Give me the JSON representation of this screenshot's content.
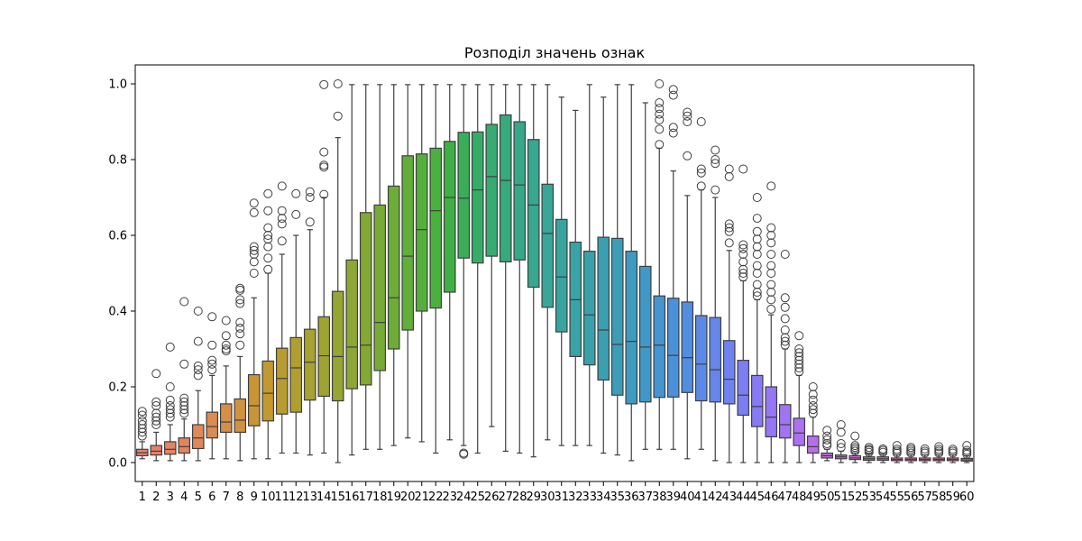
{
  "chart_data": {
    "type": "box",
    "title": "Розподіл значень ознак",
    "xlabel": "",
    "ylabel": "",
    "ylim": [
      -0.05,
      1.05
    ],
    "yticks": [
      0.0,
      0.2,
      0.4,
      0.6,
      0.8,
      1.0
    ],
    "ytick_labels": [
      "0.0",
      "0.2",
      "0.4",
      "0.6",
      "0.8",
      "1.0"
    ],
    "grid": false,
    "legend": "none",
    "categories": [
      "1",
      "2",
      "3",
      "4",
      "5",
      "6",
      "7",
      "8",
      "9",
      "10",
      "11",
      "12",
      "13",
      "14",
      "15",
      "16",
      "17",
      "18",
      "19",
      "20",
      "21",
      "22",
      "23",
      "24",
      "25",
      "26",
      "27",
      "28",
      "29",
      "30",
      "31",
      "32",
      "33",
      "34",
      "35",
      "36",
      "37",
      "38",
      "39",
      "40",
      "41",
      "42",
      "43",
      "44",
      "45",
      "46",
      "47",
      "48",
      "49",
      "50",
      "51",
      "52",
      "53",
      "54",
      "55",
      "56",
      "57",
      "58",
      "59",
      "60"
    ],
    "colors": [
      "#e8816f",
      "#e6816a",
      "#e58365",
      "#e38460",
      "#df885a",
      "#dc8b52",
      "#d58f48",
      "#cf9240",
      "#c89636",
      "#c1992f",
      "#b99c2f",
      "#b09f30",
      "#a7a231",
      "#9fa332",
      "#97a533",
      "#8da734",
      "#83a935",
      "#78ab36",
      "#6cad38",
      "#61ae39",
      "#55b03b",
      "#4ab13e",
      "#3fb046",
      "#38ae58",
      "#36ad66",
      "#36ab72",
      "#36aa7d",
      "#36a886",
      "#37a78f",
      "#38a698",
      "#38a49f",
      "#39a3a6",
      "#3aa1ab",
      "#3b9fb2",
      "#3c9db9",
      "#3e9bc0",
      "#4098c8",
      "#4595d2",
      "#4b91d9",
      "#528ee0",
      "#5b8ae6",
      "#6586eb",
      "#7082ef",
      "#7b7ef2",
      "#877af4",
      "#9577f4",
      "#a174f3",
      "#ad71f0",
      "#b86eec",
      "#c36be7",
      "#cd68e0",
      "#d666d8",
      "#dd66cf",
      "#e267c5",
      "#e669bb",
      "#e96bb0",
      "#eb6ea7",
      "#ec709e",
      "#ed7396",
      "#ed768e"
    ],
    "series": [
      {
        "min": 0.01,
        "q1": 0.018,
        "median": 0.026,
        "q3": 0.035,
        "max": 0.055,
        "outliers": [
          0.07,
          0.08,
          0.09,
          0.1,
          0.11,
          0.125,
          0.135
        ]
      },
      {
        "min": 0.005,
        "q1": 0.02,
        "median": 0.03,
        "q3": 0.045,
        "max": 0.08,
        "outliers": [
          0.1,
          0.11,
          0.12,
          0.13,
          0.15,
          0.16,
          0.235
        ]
      },
      {
        "min": 0.005,
        "q1": 0.022,
        "median": 0.035,
        "q3": 0.055,
        "max": 0.1,
        "outliers": [
          0.12,
          0.13,
          0.14,
          0.15,
          0.165,
          0.2,
          0.305
        ]
      },
      {
        "min": 0.005,
        "q1": 0.025,
        "median": 0.042,
        "q3": 0.065,
        "max": 0.115,
        "outliers": [
          0.13,
          0.14,
          0.15,
          0.16,
          0.17,
          0.26,
          0.425
        ]
      },
      {
        "min": 0.005,
        "q1": 0.037,
        "median": 0.065,
        "q3": 0.1,
        "max": 0.19,
        "outliers": [
          0.23,
          0.245,
          0.255,
          0.32,
          0.4
        ]
      },
      {
        "min": 0.01,
        "q1": 0.065,
        "median": 0.095,
        "q3": 0.133,
        "max": 0.23,
        "outliers": [
          0.245,
          0.26,
          0.27,
          0.31,
          0.385
        ]
      },
      {
        "min": 0.01,
        "q1": 0.08,
        "median": 0.107,
        "q3": 0.155,
        "max": 0.255,
        "outliers": [
          0.295,
          0.3,
          0.31,
          0.335,
          0.375
        ]
      },
      {
        "min": 0.005,
        "q1": 0.08,
        "median": 0.112,
        "q3": 0.168,
        "max": 0.28,
        "outliers": [
          0.31,
          0.34,
          0.355,
          0.37,
          0.42,
          0.43,
          0.455,
          0.46
        ]
      },
      {
        "min": 0.01,
        "q1": 0.097,
        "median": 0.15,
        "q3": 0.232,
        "max": 0.435,
        "outliers": [
          0.5,
          0.53,
          0.55,
          0.56,
          0.57,
          0.66,
          0.685
        ]
      },
      {
        "min": 0.01,
        "q1": 0.11,
        "median": 0.183,
        "q3": 0.268,
        "max": 0.5,
        "outliers": [
          0.51,
          0.54,
          0.57,
          0.59,
          0.6,
          0.62,
          0.665,
          0.71
        ]
      },
      {
        "min": 0.025,
        "q1": 0.128,
        "median": 0.222,
        "q3": 0.302,
        "max": 0.55,
        "outliers": [
          0.585,
          0.63,
          0.645,
          0.665,
          0.73
        ]
      },
      {
        "min": 0.025,
        "q1": 0.133,
        "median": 0.25,
        "q3": 0.33,
        "max": 0.6,
        "outliers": [
          0.655,
          0.71
        ]
      },
      {
        "min": 0.02,
        "q1": 0.165,
        "median": 0.265,
        "q3": 0.352,
        "max": 0.615,
        "outliers": [
          0.635,
          0.7,
          0.715
        ]
      },
      {
        "min": 0.025,
        "q1": 0.175,
        "median": 0.282,
        "q3": 0.385,
        "max": 0.7,
        "outliers": [
          0.708,
          0.78,
          0.785,
          0.82,
          0.998
        ]
      },
      {
        "min": 0.0,
        "q1": 0.163,
        "median": 0.28,
        "q3": 0.452,
        "max": 0.858,
        "outliers": [
          0.915,
          1.0
        ]
      },
      {
        "min": 0.02,
        "q1": 0.195,
        "median": 0.305,
        "q3": 0.535,
        "max": 0.998,
        "outliers": []
      },
      {
        "min": 0.035,
        "q1": 0.205,
        "median": 0.31,
        "q3": 0.66,
        "max": 0.998,
        "outliers": []
      },
      {
        "min": 0.035,
        "q1": 0.243,
        "median": 0.37,
        "q3": 0.68,
        "max": 0.998,
        "outliers": []
      },
      {
        "min": 0.045,
        "q1": 0.3,
        "median": 0.435,
        "q3": 0.73,
        "max": 0.998,
        "outliers": []
      },
      {
        "min": 0.065,
        "q1": 0.35,
        "median": 0.545,
        "q3": 0.81,
        "max": 0.998,
        "outliers": []
      },
      {
        "min": 0.055,
        "q1": 0.4,
        "median": 0.615,
        "q3": 0.815,
        "max": 0.998,
        "outliers": []
      },
      {
        "min": 0.025,
        "q1": 0.408,
        "median": 0.665,
        "q3": 0.83,
        "max": 0.998,
        "outliers": []
      },
      {
        "min": 0.06,
        "q1": 0.45,
        "median": 0.7,
        "q3": 0.848,
        "max": 0.998,
        "outliers": []
      },
      {
        "min": 0.045,
        "q1": 0.54,
        "median": 0.698,
        "q3": 0.872,
        "max": 0.998,
        "outliers": [
          0.022,
          0.025
        ]
      },
      {
        "min": 0.025,
        "q1": 0.527,
        "median": 0.72,
        "q3": 0.873,
        "max": 0.998,
        "outliers": []
      },
      {
        "min": 0.095,
        "q1": 0.545,
        "median": 0.755,
        "q3": 0.893,
        "max": 0.998,
        "outliers": []
      },
      {
        "min": 0.03,
        "q1": 0.53,
        "median": 0.745,
        "q3": 0.918,
        "max": 0.998,
        "outliers": []
      },
      {
        "min": 0.025,
        "q1": 0.535,
        "median": 0.733,
        "q3": 0.9,
        "max": 0.998,
        "outliers": []
      },
      {
        "min": 0.015,
        "q1": 0.463,
        "median": 0.68,
        "q3": 0.853,
        "max": 0.998,
        "outliers": []
      },
      {
        "min": 0.06,
        "q1": 0.41,
        "median": 0.605,
        "q3": 0.735,
        "max": 0.998,
        "outliers": []
      },
      {
        "min": 0.045,
        "q1": 0.345,
        "median": 0.49,
        "q3": 0.642,
        "max": 0.965,
        "outliers": []
      },
      {
        "min": 0.045,
        "q1": 0.28,
        "median": 0.43,
        "q3": 0.582,
        "max": 0.93,
        "outliers": []
      },
      {
        "min": 0.045,
        "q1": 0.258,
        "median": 0.39,
        "q3": 0.558,
        "max": 0.998,
        "outliers": []
      },
      {
        "min": 0.025,
        "q1": 0.218,
        "median": 0.35,
        "q3": 0.595,
        "max": 0.965,
        "outliers": []
      },
      {
        "min": 0.02,
        "q1": 0.178,
        "median": 0.312,
        "q3": 0.592,
        "max": 0.998,
        "outliers": []
      },
      {
        "min": 0.005,
        "q1": 0.155,
        "median": 0.32,
        "q3": 0.558,
        "max": 0.998,
        "outliers": []
      },
      {
        "min": 0.035,
        "q1": 0.16,
        "median": 0.305,
        "q3": 0.518,
        "max": 0.95,
        "outliers": []
      },
      {
        "min": 0.035,
        "q1": 0.172,
        "median": 0.31,
        "q3": 0.44,
        "max": 0.83,
        "outliers": [
          0.84,
          0.88,
          0.905,
          0.92,
          0.935,
          0.95,
          1.0
        ]
      },
      {
        "min": 0.035,
        "q1": 0.173,
        "median": 0.283,
        "q3": 0.434,
        "max": 0.77,
        "outliers": [
          0.87,
          0.885,
          0.97,
          0.985
        ]
      },
      {
        "min": 0.01,
        "q1": 0.185,
        "median": 0.277,
        "q3": 0.424,
        "max": 0.705,
        "outliers": [
          0.81,
          0.9,
          0.915,
          0.925
        ]
      },
      {
        "min": 0.035,
        "q1": 0.163,
        "median": 0.26,
        "q3": 0.388,
        "max": 0.72,
        "outliers": [
          0.73,
          0.765,
          0.775,
          0.9
        ]
      },
      {
        "min": 0.005,
        "q1": 0.16,
        "median": 0.245,
        "q3": 0.383,
        "max": 0.7,
        "outliers": [
          0.72,
          0.79,
          0.8,
          0.825
        ]
      },
      {
        "min": 0.0,
        "q1": 0.155,
        "median": 0.22,
        "q3": 0.322,
        "max": 0.56,
        "outliers": [
          0.58,
          0.61,
          0.62,
          0.63,
          0.755,
          0.775
        ]
      },
      {
        "min": 0.0,
        "q1": 0.125,
        "median": 0.178,
        "q3": 0.27,
        "max": 0.48,
        "outliers": [
          0.49,
          0.5,
          0.51,
          0.53,
          0.55,
          0.565,
          0.575,
          0.775
        ]
      },
      {
        "min": 0.0,
        "q1": 0.095,
        "median": 0.148,
        "q3": 0.23,
        "max": 0.43,
        "outliers": [
          0.44,
          0.45,
          0.47,
          0.5,
          0.52,
          0.55,
          0.57,
          0.59,
          0.61,
          0.645,
          0.7
        ]
      },
      {
        "min": 0.0,
        "q1": 0.068,
        "median": 0.12,
        "q3": 0.2,
        "max": 0.39,
        "outliers": [
          0.405,
          0.43,
          0.45,
          0.47,
          0.5,
          0.52,
          0.55,
          0.58,
          0.6,
          0.62,
          0.73
        ]
      },
      {
        "min": 0.0,
        "q1": 0.065,
        "median": 0.1,
        "q3": 0.153,
        "max": 0.3,
        "outliers": [
          0.31,
          0.32,
          0.33,
          0.35,
          0.38,
          0.41,
          0.435,
          0.55
        ]
      },
      {
        "min": 0.0,
        "q1": 0.045,
        "median": 0.078,
        "q3": 0.117,
        "max": 0.23,
        "outliers": [
          0.24,
          0.25,
          0.26,
          0.27,
          0.28,
          0.29,
          0.3,
          0.335
        ]
      },
      {
        "min": 0.0,
        "q1": 0.025,
        "median": 0.042,
        "q3": 0.07,
        "max": 0.12,
        "outliers": [
          0.13,
          0.14,
          0.15,
          0.165,
          0.18,
          0.2
        ]
      },
      {
        "min": 0.005,
        "q1": 0.012,
        "median": 0.018,
        "q3": 0.025,
        "max": 0.035,
        "outliers": [
          0.045,
          0.05,
          0.06,
          0.07,
          0.085
        ]
      },
      {
        "min": 0.0,
        "q1": 0.01,
        "median": 0.015,
        "q3": 0.02,
        "max": 0.03,
        "outliers": [
          0.04,
          0.05,
          0.08,
          0.1
        ]
      },
      {
        "min": 0.0,
        "q1": 0.008,
        "median": 0.012,
        "q3": 0.018,
        "max": 0.025,
        "outliers": [
          0.03,
          0.035,
          0.04,
          0.045,
          0.07
        ]
      },
      {
        "min": 0.0,
        "q1": 0.006,
        "median": 0.01,
        "q3": 0.015,
        "max": 0.022,
        "outliers": [
          0.027,
          0.032,
          0.035,
          0.04
        ]
      },
      {
        "min": 0.0,
        "q1": 0.006,
        "median": 0.01,
        "q3": 0.015,
        "max": 0.022,
        "outliers": [
          0.027,
          0.032,
          0.036
        ]
      },
      {
        "min": 0.0,
        "q1": 0.005,
        "median": 0.008,
        "q3": 0.012,
        "max": 0.02,
        "outliers": [
          0.025,
          0.03,
          0.035,
          0.045
        ]
      },
      {
        "min": 0.0,
        "q1": 0.005,
        "median": 0.008,
        "q3": 0.012,
        "max": 0.02,
        "outliers": [
          0.025,
          0.03,
          0.035,
          0.04
        ]
      },
      {
        "min": 0.0,
        "q1": 0.005,
        "median": 0.008,
        "q3": 0.012,
        "max": 0.02,
        "outliers": [
          0.025,
          0.03,
          0.036
        ]
      },
      {
        "min": 0.0,
        "q1": 0.005,
        "median": 0.008,
        "q3": 0.012,
        "max": 0.02,
        "outliers": [
          0.025,
          0.03,
          0.035,
          0.042
        ]
      },
      {
        "min": 0.0,
        "q1": 0.005,
        "median": 0.008,
        "q3": 0.012,
        "max": 0.02,
        "outliers": [
          0.025,
          0.03,
          0.035
        ]
      },
      {
        "min": 0.0,
        "q1": 0.004,
        "median": 0.007,
        "q3": 0.011,
        "max": 0.018,
        "outliers": [
          0.022,
          0.027,
          0.032,
          0.045
        ]
      }
    ]
  }
}
